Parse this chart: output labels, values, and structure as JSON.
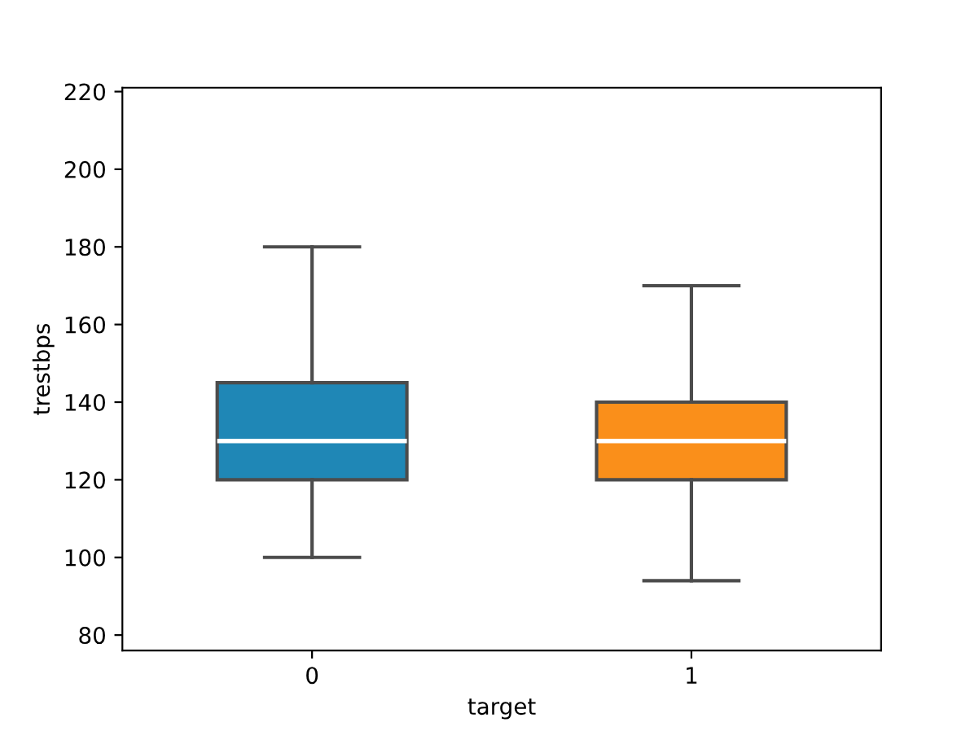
{
  "chart_data": {
    "type": "box",
    "xlabel": "target",
    "ylabel": "trestbps",
    "categories": [
      "0",
      "1"
    ],
    "boxes": [
      {
        "low": 100,
        "q1": 120,
        "median": 130,
        "q3": 145,
        "high": 180
      },
      {
        "low": 94,
        "q1": 120,
        "median": 130,
        "q3": 140,
        "high": 170
      }
    ],
    "colors": [
      "#1f87b6",
      "#fa8f1a"
    ],
    "ylim": [
      76,
      221
    ],
    "yticks": [
      80,
      100,
      120,
      140,
      160,
      180,
      200,
      220
    ],
    "grid": false,
    "legend": false
  }
}
